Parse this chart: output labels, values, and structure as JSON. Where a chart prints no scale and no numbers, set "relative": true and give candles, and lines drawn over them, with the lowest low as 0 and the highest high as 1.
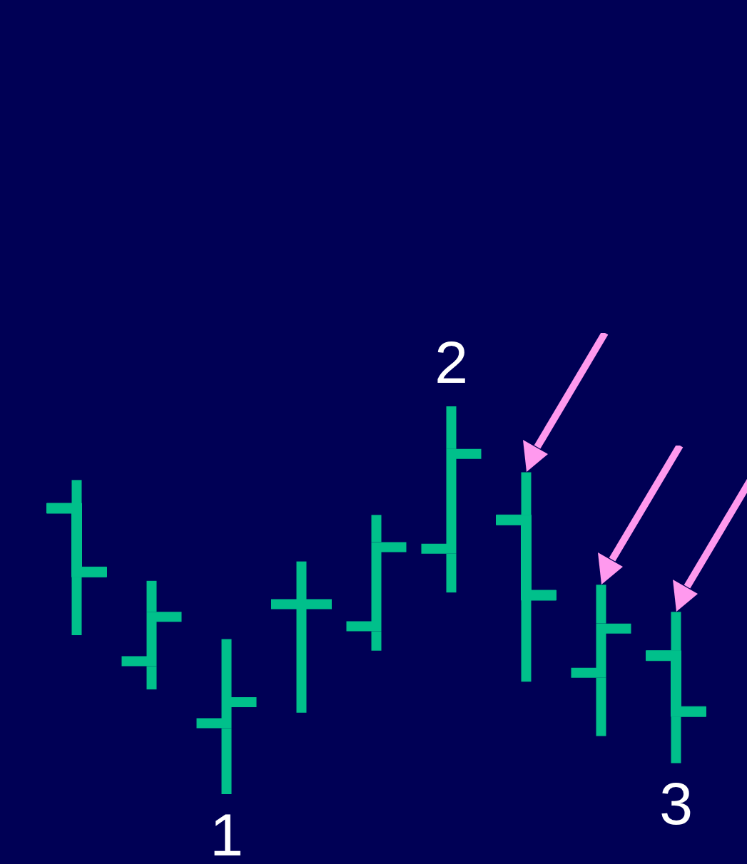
{
  "chart_data": {
    "type": "candlestick",
    "relative": true,
    "color": "#00c08b",
    "categories": [
      null,
      null,
      null,
      null,
      null,
      null,
      null,
      null,
      null
    ],
    "ohlc": [
      [
        0.75,
        0.81,
        0.41,
        0.56
      ],
      [
        0.33,
        0.55,
        0.27,
        0.47
      ],
      [
        0.17,
        0.4,
        0,
        0.25
      ],
      [
        0.49,
        0.6,
        0.21,
        0.49
      ],
      [
        0.42,
        0.72,
        0.37,
        0.65
      ],
      [
        0.62,
        1,
        0.52,
        0.89
      ],
      [
        0.72,
        0.83,
        0.29,
        0.5
      ],
      [
        0.3,
        0.54,
        0.15,
        0.44
      ],
      [
        0.37,
        0.47,
        0.08,
        0.2
      ]
    ],
    "annotations": [
      {
        "text": "1",
        "y": 0
      },
      {
        "text": "2",
        "y": 1
      },
      {
        "text": "3",
        "y": 0.08
      }
    ]
  }
}
